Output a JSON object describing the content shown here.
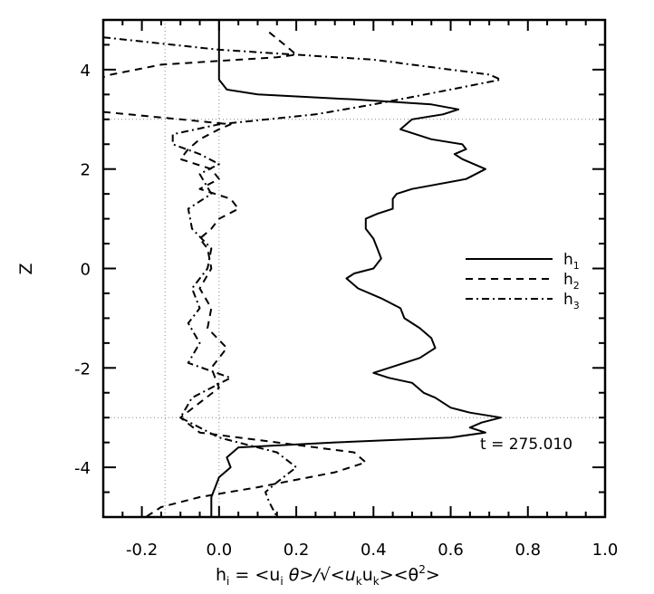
{
  "chart_data": {
    "type": "line",
    "title": "",
    "xlabel": "h_i = <u_i θ>/√<u_k u_k><θ²>",
    "ylabel": "Z",
    "xlim": [
      -0.3,
      1.0
    ],
    "ylim": [
      -5,
      5
    ],
    "xticks": [
      "-0.2",
      "0.0",
      "0.2",
      "0.4",
      "0.6",
      "0.8",
      "1.0"
    ],
    "xtick_values": [
      -0.2,
      0.0,
      0.2,
      0.4,
      0.6,
      0.8,
      1.0
    ],
    "yticks": [
      "4",
      "2",
      "0",
      "-2",
      "-4"
    ],
    "ytick_values": [
      4,
      2,
      0,
      -2,
      -4
    ],
    "reference_lines": {
      "vertical": [
        -0.14,
        0.0
      ],
      "horizontal": [
        3,
        -3
      ]
    },
    "annotation": "t = 275.010",
    "legend": {
      "placement": "right",
      "entries": [
        "h1",
        "h2",
        "h3"
      ]
    },
    "series": [
      {
        "name": "h1",
        "style": "solid",
        "z": [
          5,
          4.5,
          4,
          3.8,
          3.7,
          3.6,
          3.5,
          3.4,
          3.3,
          3.2,
          3.1,
          3.0,
          2.8,
          2.6,
          2.5,
          2.4,
          2.3,
          2.2,
          2.0,
          1.8,
          1.6,
          1.5,
          1.4,
          1.2,
          1.1,
          1.0,
          0.8,
          0.6,
          0.4,
          0.2,
          0.0,
          -0.1,
          -0.2,
          -0.4,
          -0.6,
          -0.8,
          -1.0,
          -1.2,
          -1.4,
          -1.6,
          -1.8,
          -2.0,
          -2.1,
          -2.2,
          -2.3,
          -2.5,
          -2.6,
          -2.8,
          -2.9,
          -3.0,
          -3.1,
          -3.2,
          -3.3,
          -3.4,
          -3.5,
          -3.6,
          -3.8,
          -4.0,
          -4.2,
          -4.4,
          -4.6,
          -5.0
        ],
        "h": [
          0.0,
          0.0,
          0.0,
          0.0,
          0.01,
          0.02,
          0.1,
          0.35,
          0.55,
          0.62,
          0.58,
          0.5,
          0.47,
          0.55,
          0.63,
          0.64,
          0.61,
          0.63,
          0.69,
          0.64,
          0.5,
          0.46,
          0.45,
          0.45,
          0.41,
          0.38,
          0.38,
          0.4,
          0.41,
          0.42,
          0.4,
          0.35,
          0.33,
          0.36,
          0.42,
          0.47,
          0.48,
          0.52,
          0.55,
          0.56,
          0.52,
          0.44,
          0.4,
          0.44,
          0.5,
          0.53,
          0.56,
          0.6,
          0.65,
          0.73,
          0.68,
          0.65,
          0.69,
          0.6,
          0.3,
          0.05,
          0.02,
          0.03,
          0.0,
          -0.01,
          -0.02,
          -0.02
        ]
      },
      {
        "name": "h2",
        "style": "dashed",
        "z": [
          4.75,
          4.5,
          4.3,
          4.25,
          4.1,
          3.9,
          3.85,
          null,
          3.15,
          3.0,
          2.9,
          2.8,
          2.6,
          2.4,
          2.2,
          2.0,
          1.8,
          1.6,
          1.4,
          1.2,
          1.0,
          0.8,
          0.6,
          0.4,
          0.0,
          -0.4,
          -0.8,
          -1.2,
          -1.6,
          -2.0,
          -2.4,
          -2.7,
          -3.0,
          -3.3,
          -3.5,
          -3.7,
          -3.9,
          -4.1,
          -4.4,
          -4.6,
          -4.8,
          -5.0
        ],
        "h": [
          0.13,
          0.17,
          0.2,
          0.15,
          -0.15,
          -0.28,
          -0.3,
          null,
          -0.3,
          -0.1,
          0.03,
          0.0,
          -0.05,
          -0.08,
          -0.1,
          -0.02,
          0.0,
          -0.05,
          0.03,
          0.05,
          0.0,
          -0.02,
          -0.05,
          -0.03,
          -0.02,
          -0.05,
          -0.02,
          -0.03,
          0.02,
          -0.02,
          0.0,
          -0.05,
          -0.1,
          -0.05,
          0.15,
          0.35,
          0.38,
          0.3,
          0.1,
          -0.05,
          -0.15,
          -0.19
        ]
      },
      {
        "name": "h3",
        "style": "dashdot",
        "z": [
          4.65,
          4.4,
          4.2,
          3.9,
          3.8,
          3.6,
          3.3,
          3.1,
          2.9,
          2.7,
          2.5,
          2.3,
          2.1,
          1.9,
          1.5,
          1.2,
          0.8,
          0.4,
          0.0,
          -0.4,
          -0.8,
          -1.1,
          -1.5,
          -1.9,
          -2.2,
          -2.6,
          -3.0,
          -3.4,
          -3.7,
          -4.0,
          -4.3,
          -4.5,
          -4.7,
          -5.0
        ],
        "h": [
          -0.3,
          0.0,
          0.4,
          0.7,
          0.73,
          0.6,
          0.4,
          0.25,
          0.0,
          -0.12,
          -0.12,
          -0.05,
          0.0,
          -0.05,
          -0.02,
          -0.08,
          -0.07,
          -0.02,
          -0.03,
          -0.07,
          -0.05,
          -0.08,
          -0.05,
          -0.08,
          0.03,
          -0.07,
          -0.1,
          0.0,
          0.15,
          0.2,
          0.15,
          0.12,
          0.13,
          0.15
        ]
      }
    ]
  },
  "legend_labels": {
    "h1_base": "h",
    "h1_sub": "1",
    "h2_base": "h",
    "h2_sub": "2",
    "h3_base": "h",
    "h3_sub": "3"
  },
  "xlabel_parts": {
    "h": "h",
    "i": "i",
    "eq": " = <u",
    "i2": "i",
    "theta": " θ>/√<u",
    "k1": "k",
    "u": "u",
    "k2": "k",
    "end1": "><θ",
    "sq": "2",
    "end2": ">"
  }
}
